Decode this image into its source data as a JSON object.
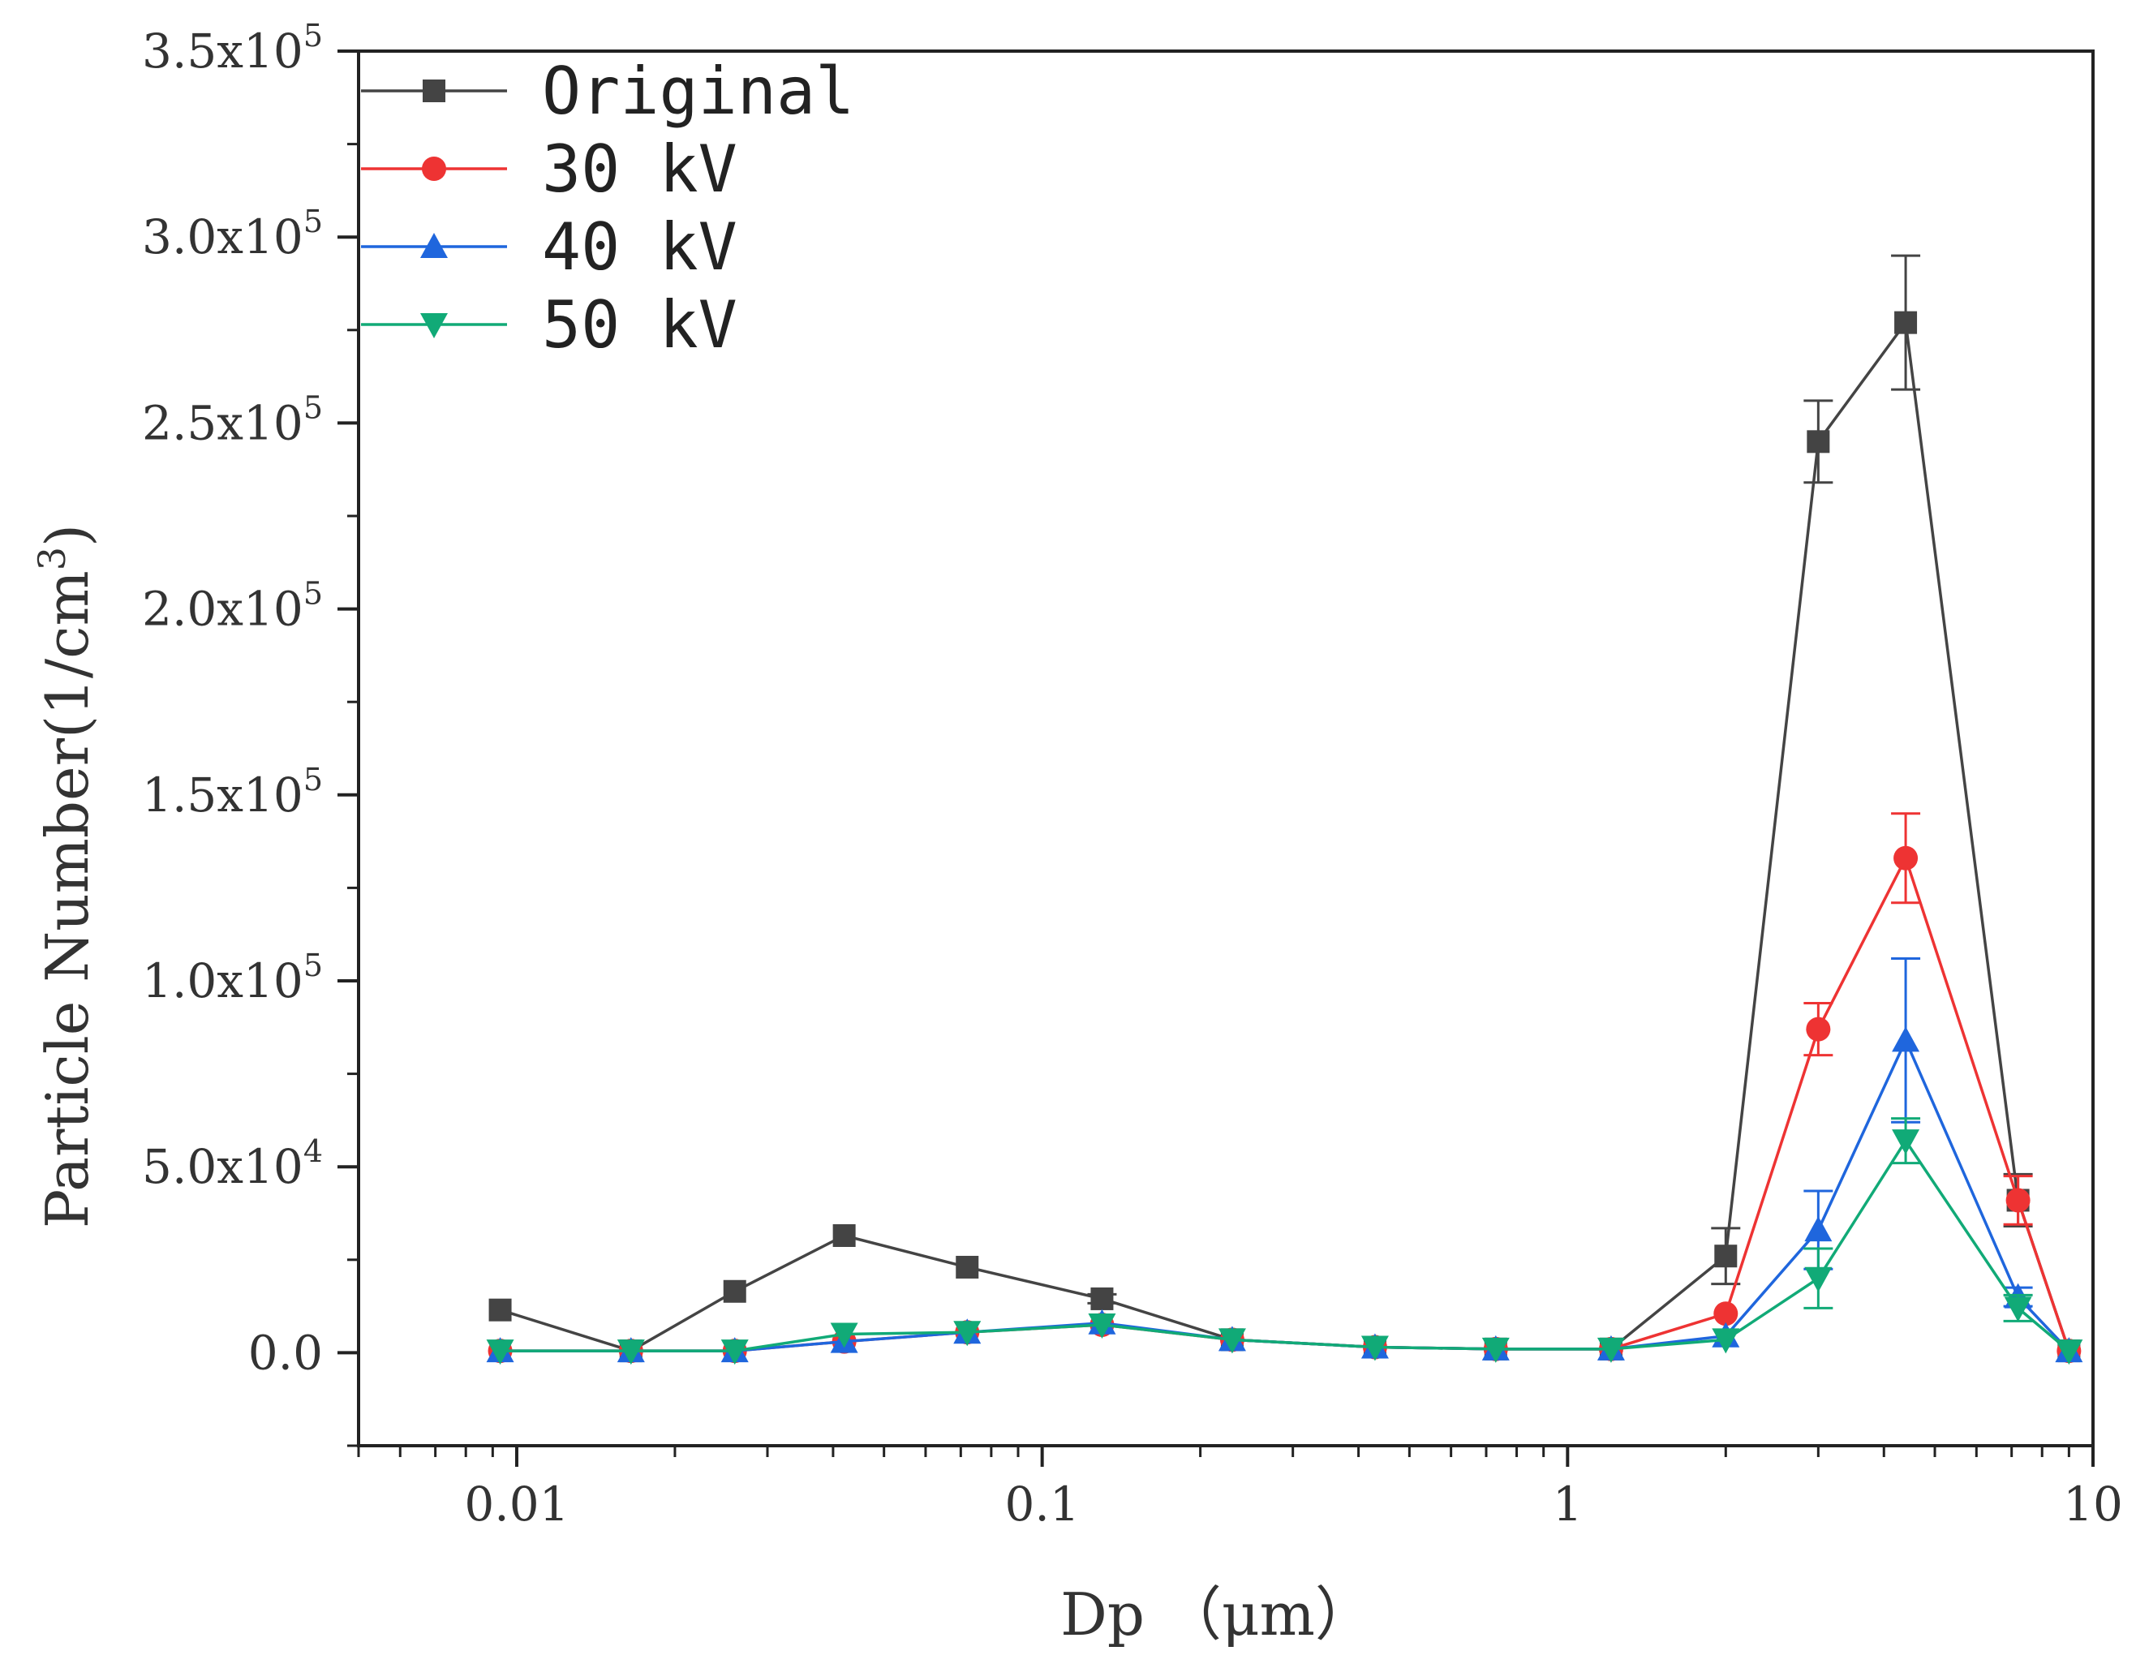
{
  "chart_data": {
    "type": "line",
    "title": "",
    "xlabel": "Dp （μm）",
    "ylabel": "Particle Number(1/cm",
    "ylabel_sup": "3",
    "ylabel_close": ")",
    "xscale": "log",
    "xlim": [
      0.005,
      10
    ],
    "ylim": [
      -25000,
      350000
    ],
    "x_ticks": [
      {
        "value": 0.01,
        "label": "0.01"
      },
      {
        "value": 0.1,
        "label": "0.1"
      },
      {
        "value": 1,
        "label": "1"
      },
      {
        "value": 10,
        "label": "10"
      }
    ],
    "y_ticks": [
      {
        "value": 0,
        "mant": "0.0",
        "exp": ""
      },
      {
        "value": 50000,
        "mant": "5.0x10",
        "exp": "4"
      },
      {
        "value": 100000,
        "mant": "1.0x10",
        "exp": "5"
      },
      {
        "value": 150000,
        "mant": "1.5x10",
        "exp": "5"
      },
      {
        "value": 200000,
        "mant": "2.0x10",
        "exp": "5"
      },
      {
        "value": 250000,
        "mant": "2.5x10",
        "exp": "5"
      },
      {
        "value": 300000,
        "mant": "3.0x10",
        "exp": "5"
      },
      {
        "value": 350000,
        "mant": "3.5x10",
        "exp": "5"
      }
    ],
    "legend_position": "top-left",
    "x": [
      0.0093,
      0.0165,
      0.026,
      0.042,
      0.072,
      0.13,
      0.23,
      0.43,
      0.73,
      1.21,
      2.0,
      3.0,
      4.4,
      7.2,
      9.0
    ],
    "series": [
      {
        "name": "Original",
        "color": "#444444",
        "marker": "square",
        "values": [
          11500,
          500,
          16500,
          31500,
          23000,
          14500,
          3500,
          1500,
          1000,
          1000,
          26000,
          245000,
          277000,
          41000,
          500
        ],
        "errors": [
          0,
          0,
          0,
          0,
          0,
          1200,
          0,
          0,
          0,
          0,
          7500,
          11000,
          18000,
          7000,
          0
        ]
      },
      {
        "name": "30 kV",
        "color": "#ee3333",
        "marker": "circle",
        "values": [
          500,
          500,
          500,
          3000,
          5500,
          7500,
          3500,
          1500,
          1000,
          1000,
          10500,
          87000,
          133000,
          41000,
          500
        ],
        "errors": [
          0,
          0,
          0,
          0,
          0,
          0,
          0,
          0,
          0,
          0,
          0,
          7000,
          12000,
          6500,
          0
        ]
      },
      {
        "name": "40 kV",
        "color": "#1f66dd",
        "marker": "triangle-up",
        "values": [
          500,
          500,
          500,
          3000,
          5500,
          8000,
          3500,
          1500,
          1000,
          1000,
          4500,
          33000,
          84000,
          15000,
          500
        ],
        "errors": [
          0,
          0,
          0,
          0,
          0,
          0,
          0,
          0,
          0,
          0,
          0,
          10500,
          22000,
          2500,
          0
        ]
      },
      {
        "name": "50 kV",
        "color": "#11aa77",
        "marker": "triangle-down",
        "values": [
          500,
          500,
          500,
          5000,
          5500,
          7500,
          3500,
          1500,
          1000,
          1000,
          3500,
          20000,
          57000,
          12000,
          500
        ],
        "errors": [
          0,
          0,
          0,
          0,
          0,
          0,
          0,
          0,
          0,
          0,
          0,
          8000,
          6000,
          3500,
          0
        ]
      }
    ]
  }
}
